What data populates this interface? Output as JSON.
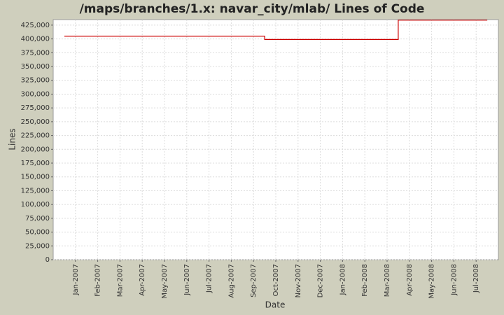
{
  "chart_data": {
    "type": "line",
    "step": true,
    "title": "/maps/branches/1.x: navar_city/mlab/ Lines of Code",
    "x_label": "Date",
    "y_label": "Lines",
    "x": [
      "2006-12",
      "2007-09",
      "2008-03",
      "2008-07"
    ],
    "series": [
      {
        "name": "Lines",
        "color": "#cc0000",
        "values": [
          405000,
          399000,
          434000,
          434000
        ]
      }
    ],
    "xlim": [
      "2006-12",
      "2008-08"
    ],
    "xticks": [
      {
        "value": "2007-01",
        "label": "Jan-2007"
      },
      {
        "value": "2007-02",
        "label": "Feb-2007"
      },
      {
        "value": "2007-03",
        "label": "Mar-2007"
      },
      {
        "value": "2007-04",
        "label": "Apr-2007"
      },
      {
        "value": "2007-05",
        "label": "May-2007"
      },
      {
        "value": "2007-06",
        "label": "Jun-2007"
      },
      {
        "value": "2007-07",
        "label": "Jul-2007"
      },
      {
        "value": "2007-08",
        "label": "Aug-2007"
      },
      {
        "value": "2007-09",
        "label": "Sep-2007"
      },
      {
        "value": "2007-10",
        "label": "Oct-2007"
      },
      {
        "value": "2007-11",
        "label": "Nov-2007"
      },
      {
        "value": "2007-12",
        "label": "Dec-2007"
      },
      {
        "value": "2008-01",
        "label": "Jan-2008"
      },
      {
        "value": "2008-02",
        "label": "Feb-2008"
      },
      {
        "value": "2008-03",
        "label": "Mar-2008"
      },
      {
        "value": "2008-04",
        "label": "Apr-2008"
      },
      {
        "value": "2008-05",
        "label": "May-2008"
      },
      {
        "value": "2008-06",
        "label": "Jun-2008"
      },
      {
        "value": "2008-07",
        "label": "Jul-2008"
      }
    ],
    "ylim": [
      0,
      435000
    ],
    "yticks": [
      0,
      {
        "value": 25000,
        "label": "25,000"
      },
      {
        "value": 50000,
        "label": "50,000"
      },
      {
        "value": 75000,
        "label": "75,000"
      },
      {
        "value": 100000,
        "label": "100,000"
      },
      {
        "value": 125000,
        "label": "125,000"
      },
      {
        "value": 150000,
        "label": "150,000"
      },
      {
        "value": 175000,
        "label": "175,000"
      },
      {
        "value": 200000,
        "label": "200,000"
      },
      {
        "value": 225000,
        "label": "225,000"
      },
      {
        "value": 250000,
        "label": "250,000"
      },
      {
        "value": 275000,
        "label": "275,000"
      },
      {
        "value": 300000,
        "label": "300,000"
      },
      {
        "value": 325000,
        "label": "325,000"
      },
      {
        "value": 350000,
        "label": "350,000"
      },
      {
        "value": 375000,
        "label": "375,000"
      },
      {
        "value": 400000,
        "label": "400,000"
      },
      {
        "value": 425000,
        "label": "425,000"
      }
    ],
    "grid": true
  }
}
